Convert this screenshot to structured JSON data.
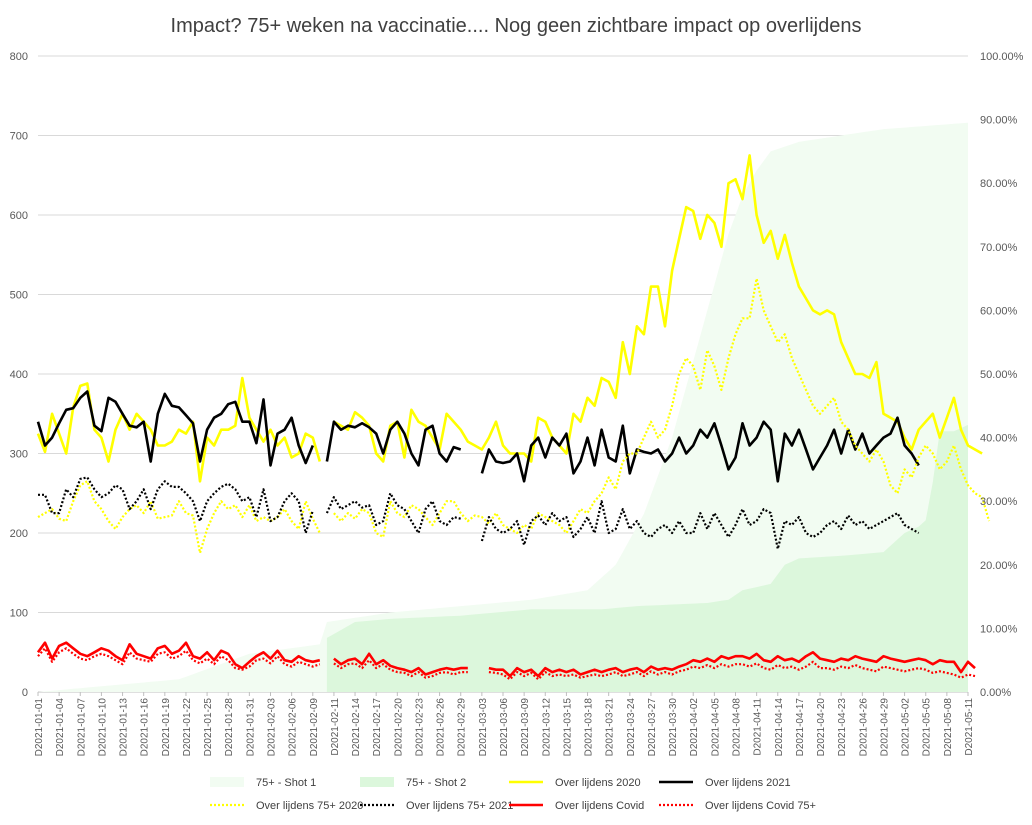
{
  "chart_data": {
    "type": "line",
    "title": "Impact? 75+    weken na vaccinatie.... Nog geen zichtbare  impact op overlijdens",
    "y_left": {
      "min": 0,
      "max": 800,
      "ticks": [
        "0",
        "100",
        "200",
        "300",
        "400",
        "500",
        "600",
        "700",
        "800"
      ]
    },
    "y_right": {
      "min": 0,
      "max": 100,
      "ticks": [
        "0.00%",
        "10.00%",
        "20.00%",
        "30.00%",
        "40.00%",
        "50.00%",
        "60.00%",
        "70.00%",
        "80.00%",
        "90.00%",
        "100.00%"
      ]
    },
    "x_ticks": [
      "D2021-01-01",
      "D2021-01-04",
      "D2021-01-07",
      "D2021-01-10",
      "D2021-01-13",
      "D2021-01-16",
      "D2021-01-19",
      "D2021-01-22",
      "D2021-01-25",
      "D2021-01-28",
      "D2021-01-31",
      "D2021-02-03",
      "D2021-02-06",
      "D2021-02-09",
      "D2021-02-11",
      "D2021-02-14",
      "D2021-02-17",
      "D2021-02-20",
      "D2021-02-23",
      "D2021-02-26",
      "D2021-02-29",
      "D2021-03-03",
      "D2021-03-06",
      "D2021-03-09",
      "D2021-03-12",
      "D2021-03-15",
      "D2021-03-18",
      "D2021-03-21",
      "D2021-03-24",
      "D2021-03-27",
      "D2021-03-30",
      "D2021-04-02",
      "D2021-04-05",
      "D2021-04-08",
      "D2021-04-11",
      "D2021-04-14",
      "D2021-04-17",
      "D2021-04-20",
      "D2021-04-23",
      "D2021-04-26",
      "D2021-04-29",
      "D2021-05-02",
      "D2021-05-05",
      "D2021-05-08",
      "D2021-05-11"
    ],
    "n_points": 133,
    "grid": "horizontal",
    "legend_position": "bottom",
    "series": [
      {
        "name": "75+  - Shot 1",
        "kind": "area",
        "axis": "right",
        "color": "#f2fcf2",
        "start": 0,
        "anchors": [
          [
            0,
            0
          ],
          [
            10,
            1
          ],
          [
            20,
            2
          ],
          [
            25,
            4
          ],
          [
            30,
            6
          ],
          [
            40,
            7.5
          ],
          [
            41,
            11
          ],
          [
            50,
            12.5
          ],
          [
            60,
            13.5
          ],
          [
            70,
            14.5
          ],
          [
            78,
            16
          ],
          [
            82,
            20
          ],
          [
            86,
            28
          ],
          [
            88,
            34
          ],
          [
            90,
            40
          ],
          [
            92,
            48
          ],
          [
            94,
            56
          ],
          [
            96,
            64
          ],
          [
            98,
            72
          ],
          [
            100,
            78
          ],
          [
            102,
            82
          ],
          [
            104,
            85
          ],
          [
            108,
            86.5
          ],
          [
            114,
            87.5
          ],
          [
            120,
            88.5
          ],
          [
            126,
            89
          ],
          [
            132,
            89.5
          ]
        ]
      },
      {
        "name": "75+  - Shot 2",
        "kind": "area",
        "axis": "right",
        "color": "#dcf7dc",
        "start": 41,
        "anchors": [
          [
            41,
            8.5
          ],
          [
            45,
            11
          ],
          [
            50,
            11.5
          ],
          [
            60,
            12
          ],
          [
            70,
            13
          ],
          [
            80,
            13
          ],
          [
            85,
            13.5
          ],
          [
            95,
            14
          ],
          [
            98,
            14.5
          ],
          [
            100,
            16
          ],
          [
            104,
            17
          ],
          [
            106,
            20
          ],
          [
            108,
            21
          ],
          [
            115,
            21.5
          ],
          [
            120,
            22
          ],
          [
            123,
            25
          ],
          [
            125,
            26
          ],
          [
            126,
            27
          ],
          [
            127,
            33
          ],
          [
            128,
            41
          ],
          [
            130,
            41
          ],
          [
            132,
            42
          ]
        ]
      },
      {
        "name": "Over lijdens 2020",
        "kind": "line",
        "axis": "left",
        "color": "#ffff00",
        "dash": "solid",
        "width": 2.6,
        "start": 0,
        "values": [
          325,
          302,
          350,
          325,
          300,
          358,
          385,
          388,
          330,
          320,
          290,
          330,
          350,
          330,
          350,
          340,
          330,
          310,
          310,
          315,
          330,
          325,
          340,
          265,
          320,
          310,
          330,
          330,
          335,
          395,
          345,
          330,
          315,
          330,
          310,
          320,
          295,
          300,
          325,
          320,
          290,
          null,
          340,
          335,
          330,
          352,
          345,
          335,
          300,
          290,
          335,
          340,
          295,
          355,
          340,
          335,
          320,
          305,
          350,
          340,
          330,
          315,
          310,
          305,
          320,
          340,
          310,
          300,
          300,
          300,
          290,
          345,
          340,
          320,
          310,
          300,
          350,
          340,
          370,
          360,
          395,
          390,
          370,
          440,
          400,
          460,
          450,
          510,
          510,
          460,
          530,
          570,
          610,
          605,
          570,
          600,
          590,
          560,
          640,
          645,
          620,
          675,
          600,
          565,
          580,
          545,
          575,
          540,
          510,
          495,
          480,
          475,
          480,
          475,
          440,
          420,
          400,
          400,
          395,
          415,
          350,
          345,
          340,
          320,
          305,
          330,
          340,
          350,
          320,
          345,
          370,
          330,
          310,
          305,
          300
        ]
      },
      {
        "name": "Over lijdens 2021",
        "kind": "line",
        "axis": "left",
        "color": "#000000",
        "dash": "solid",
        "width": 2.6,
        "start": 0,
        "values": [
          340,
          310,
          320,
          338,
          355,
          357,
          370,
          378,
          335,
          328,
          370,
          365,
          350,
          335,
          333,
          340,
          290,
          350,
          375,
          360,
          358,
          348,
          338,
          290,
          330,
          345,
          350,
          362,
          365,
          340,
          340,
          313,
          368,
          285,
          325,
          330,
          345,
          310,
          288,
          310,
          null,
          290,
          340,
          330,
          335,
          333,
          338,
          333,
          325,
          300,
          330,
          340,
          325,
          300,
          285,
          330,
          335,
          300,
          290,
          308,
          305,
          null,
          null,
          275,
          305,
          290,
          288,
          290,
          300,
          265,
          310,
          320,
          295,
          320,
          310,
          325,
          275,
          290,
          320,
          285,
          330,
          295,
          290,
          335,
          275,
          305,
          302,
          300,
          305,
          290,
          300,
          320,
          300,
          310,
          330,
          320,
          338,
          310,
          280,
          295,
          338,
          310,
          320,
          340,
          330,
          265,
          325,
          310,
          330,
          305,
          280,
          295,
          310,
          330,
          300,
          330,
          305,
          325,
          300,
          310,
          320,
          325,
          345,
          310,
          300,
          285,
          null,
          null,
          null,
          null,
          null,
          null,
          null,
          null
        ]
      },
      {
        "name": "Over lijdens  75+ 2020",
        "kind": "line",
        "axis": "left",
        "color": "#ffff00",
        "dash": "dotted",
        "width": 2.2,
        "start": 0,
        "values": [
          220,
          225,
          230,
          218,
          215,
          240,
          260,
          265,
          240,
          230,
          215,
          205,
          220,
          230,
          235,
          225,
          240,
          218,
          220,
          222,
          240,
          225,
          222,
          175,
          205,
          225,
          240,
          230,
          235,
          220,
          235,
          215,
          220,
          215,
          220,
          230,
          215,
          205,
          240,
          218,
          200,
          null,
          225,
          215,
          225,
          218,
          230,
          225,
          200,
          195,
          240,
          225,
          220,
          235,
          230,
          220,
          210,
          225,
          240,
          240,
          225,
          215,
          222,
          220,
          212,
          225,
          210,
          205,
          200,
          210,
          205,
          225,
          220,
          215,
          210,
          200,
          215,
          230,
          225,
          240,
          250,
          270,
          255,
          290,
          300,
          300,
          320,
          340,
          320,
          330,
          360,
          400,
          420,
          410,
          380,
          430,
          410,
          380,
          420,
          450,
          470,
          470,
          520,
          480,
          460,
          440,
          450,
          420,
          400,
          380,
          360,
          350,
          360,
          370,
          340,
          330,
          310,
          300,
          290,
          305,
          290,
          260,
          250,
          280,
          270,
          295,
          310,
          300,
          280,
          290,
          310,
          280,
          260,
          250,
          245,
          215
        ]
      },
      {
        "name": "Over lijdens 75+ 2021",
        "kind": "line",
        "axis": "left",
        "color": "#000000",
        "dash": "dotted",
        "width": 2.2,
        "start": 0,
        "values": [
          248,
          248,
          225,
          225,
          255,
          245,
          268,
          270,
          255,
          245,
          250,
          260,
          255,
          230,
          240,
          255,
          230,
          255,
          265,
          258,
          258,
          250,
          240,
          215,
          240,
          250,
          258,
          262,
          255,
          240,
          245,
          220,
          255,
          215,
          220,
          240,
          250,
          240,
          200,
          228,
          null,
          225,
          245,
          230,
          235,
          240,
          232,
          235,
          210,
          215,
          250,
          235,
          230,
          215,
          200,
          230,
          240,
          215,
          210,
          220,
          218,
          null,
          null,
          190,
          220,
          205,
          200,
          205,
          215,
          185,
          215,
          222,
          210,
          225,
          215,
          220,
          195,
          205,
          220,
          200,
          240,
          200,
          205,
          230,
          205,
          215,
          200,
          195,
          205,
          210,
          200,
          215,
          200,
          200,
          225,
          205,
          225,
          210,
          195,
          210,
          230,
          210,
          215,
          230,
          225,
          180,
          215,
          210,
          220,
          200,
          195,
          200,
          210,
          215,
          205,
          222,
          210,
          215,
          205,
          210,
          215,
          220,
          225,
          210,
          205,
          200,
          null,
          null,
          null,
          null,
          null,
          null,
          null,
          null
        ]
      },
      {
        "name": "Over lijdens Covid",
        "kind": "line",
        "axis": "left",
        "color": "#ff0000",
        "dash": "solid",
        "width": 2.6,
        "start": 0,
        "values": [
          50,
          62,
          42,
          58,
          62,
          55,
          48,
          45,
          50,
          55,
          52,
          45,
          40,
          60,
          48,
          45,
          42,
          55,
          58,
          48,
          52,
          62,
          45,
          42,
          50,
          40,
          52,
          48,
          35,
          30,
          38,
          45,
          50,
          42,
          52,
          40,
          38,
          45,
          40,
          38,
          40,
          null,
          42,
          35,
          40,
          42,
          35,
          48,
          35,
          40,
          33,
          30,
          28,
          25,
          30,
          22,
          25,
          28,
          30,
          28,
          30,
          30,
          null,
          null,
          30,
          28,
          28,
          20,
          30,
          25,
          28,
          20,
          30,
          25,
          28,
          25,
          28,
          22,
          25,
          28,
          25,
          28,
          30,
          25,
          28,
          30,
          25,
          32,
          28,
          30,
          28,
          32,
          35,
          40,
          38,
          42,
          38,
          45,
          42,
          45,
          45,
          42,
          48,
          40,
          38,
          45,
          40,
          42,
          38,
          45,
          50,
          42,
          40,
          38,
          42,
          40,
          45,
          42,
          40,
          38,
          45,
          42,
          40,
          38,
          40,
          42,
          40,
          35,
          40,
          38,
          38,
          25,
          38,
          30
        ]
      },
      {
        "name": "Over lijdens Covid 75+",
        "kind": "line",
        "axis": "left",
        "color": "#ff0000",
        "dash": "dotted",
        "width": 2.2,
        "start": 0,
        "values": [
          45,
          55,
          38,
          50,
          55,
          48,
          42,
          40,
          45,
          48,
          45,
          40,
          35,
          50,
          42,
          40,
          38,
          48,
          50,
          42,
          45,
          52,
          40,
          36,
          42,
          35,
          45,
          40,
          30,
          28,
          32,
          40,
          42,
          36,
          45,
          35,
          32,
          38,
          35,
          32,
          35,
          null,
          36,
          30,
          35,
          36,
          30,
          40,
          30,
          35,
          28,
          25,
          24,
          20,
          25,
          18,
          20,
          24,
          25,
          22,
          25,
          25,
          null,
          null,
          25,
          24,
          22,
          16,
          25,
          20,
          24,
          16,
          25,
          20,
          22,
          20,
          22,
          18,
          20,
          22,
          20,
          22,
          25,
          20,
          22,
          25,
          20,
          26,
          22,
          25,
          22,
          26,
          28,
          32,
          30,
          34,
          30,
          35,
          32,
          35,
          35,
          32,
          36,
          30,
          28,
          34,
          30,
          32,
          28,
          32,
          38,
          30,
          30,
          28,
          32,
          30,
          34,
          30,
          28,
          26,
          32,
          30,
          28,
          26,
          28,
          30,
          28,
          24,
          26,
          24,
          22,
          18,
          22,
          20
        ]
      }
    ],
    "legend": [
      {
        "label": "75+  - Shot 1",
        "series": 0
      },
      {
        "label": "75+  - Shot 2",
        "series": 1
      },
      {
        "label": "Over lijdens 2020",
        "series": 2
      },
      {
        "label": "Over lijdens 2021",
        "series": 3
      },
      {
        "label": "Over lijdens  75+ 2020",
        "series": 4
      },
      {
        "label": "Over lijdens 75+ 2021",
        "series": 5
      },
      {
        "label": "Over lijdens Covid",
        "series": 6
      },
      {
        "label": "Over lijdens Covid 75+",
        "series": 7
      }
    ]
  }
}
